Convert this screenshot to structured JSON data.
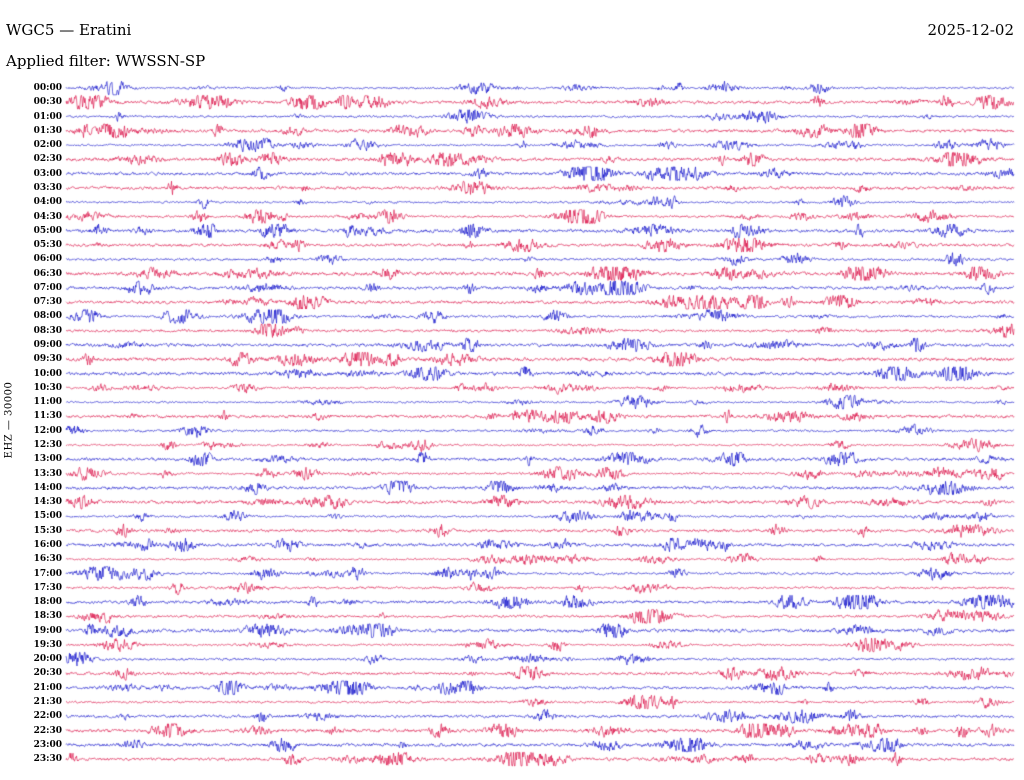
{
  "header": {
    "station_title": "WGC5 — Eratini",
    "date": "2025-12-02",
    "filter_label": "Applied filter: WWSSN-SP"
  },
  "y_axis_label": "EHZ — 30000",
  "colors": {
    "background": "#ffffff",
    "text": "#000000",
    "trace_blue": "#0000c8",
    "trace_red": "#d8003c"
  },
  "chart_data": {
    "type": "line",
    "subtype": "helicorder-seismogram",
    "station": "WGC5",
    "location": "Eratini",
    "date": "2025-12-02",
    "applied_filter": "WWSSN-SP",
    "channel": "EHZ",
    "gain": "30000",
    "minutes_per_row": 30,
    "rows_per_day": 48,
    "legend": "none",
    "grid": "off",
    "waveform_character": "continuous band-limited microseismic noise around each row baseline with frequent short-duration higher-amplitude event bursts; rows alternate blue/red, 30 minutes per row from 00:00 to 23:30",
    "rows": [
      {
        "time": "00:00",
        "color": "blue"
      },
      {
        "time": "00:30",
        "color": "red"
      },
      {
        "time": "01:00",
        "color": "blue"
      },
      {
        "time": "01:30",
        "color": "red"
      },
      {
        "time": "02:00",
        "color": "blue"
      },
      {
        "time": "02:30",
        "color": "red"
      },
      {
        "time": "03:00",
        "color": "blue"
      },
      {
        "time": "03:30",
        "color": "red"
      },
      {
        "time": "04:00",
        "color": "blue"
      },
      {
        "time": "04:30",
        "color": "red"
      },
      {
        "time": "05:00",
        "color": "blue"
      },
      {
        "time": "05:30",
        "color": "red"
      },
      {
        "time": "06:00",
        "color": "blue"
      },
      {
        "time": "06:30",
        "color": "red"
      },
      {
        "time": "07:00",
        "color": "blue"
      },
      {
        "time": "07:30",
        "color": "red"
      },
      {
        "time": "08:00",
        "color": "blue"
      },
      {
        "time": "08:30",
        "color": "red"
      },
      {
        "time": "09:00",
        "color": "blue"
      },
      {
        "time": "09:30",
        "color": "red"
      },
      {
        "time": "10:00",
        "color": "blue"
      },
      {
        "time": "10:30",
        "color": "red"
      },
      {
        "time": "11:00",
        "color": "blue"
      },
      {
        "time": "11:30",
        "color": "red"
      },
      {
        "time": "12:00",
        "color": "blue"
      },
      {
        "time": "12:30",
        "color": "red"
      },
      {
        "time": "13:00",
        "color": "blue"
      },
      {
        "time": "13:30",
        "color": "red"
      },
      {
        "time": "14:00",
        "color": "blue"
      },
      {
        "time": "14:30",
        "color": "red"
      },
      {
        "time": "15:00",
        "color": "blue"
      },
      {
        "time": "15:30",
        "color": "red"
      },
      {
        "time": "16:00",
        "color": "blue"
      },
      {
        "time": "16:30",
        "color": "red"
      },
      {
        "time": "17:00",
        "color": "blue"
      },
      {
        "time": "17:30",
        "color": "red"
      },
      {
        "time": "18:00",
        "color": "blue"
      },
      {
        "time": "18:30",
        "color": "red"
      },
      {
        "time": "19:00",
        "color": "blue"
      },
      {
        "time": "19:30",
        "color": "red"
      },
      {
        "time": "20:00",
        "color": "blue"
      },
      {
        "time": "20:30",
        "color": "red"
      },
      {
        "time": "21:00",
        "color": "blue"
      },
      {
        "time": "21:30",
        "color": "red"
      },
      {
        "time": "22:00",
        "color": "blue"
      },
      {
        "time": "22:30",
        "color": "red"
      },
      {
        "time": "23:00",
        "color": "blue"
      },
      {
        "time": "23:30",
        "color": "red"
      }
    ]
  }
}
